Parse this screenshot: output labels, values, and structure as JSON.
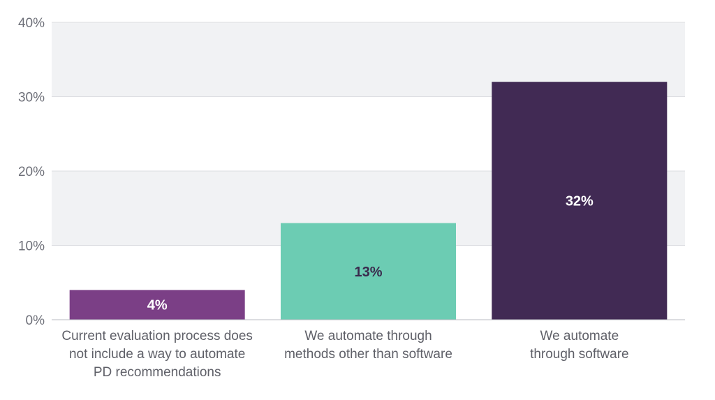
{
  "chart_data": {
    "type": "bar",
    "title": "",
    "xlabel": "",
    "ylabel": "",
    "ylim": [
      0,
      40
    ],
    "yticks": [
      "0%",
      "10%",
      "20%",
      "30%",
      "40%"
    ],
    "ytick_values": [
      0,
      10,
      20,
      30,
      40
    ],
    "grid": "horizontal bands",
    "legend": "none",
    "categories": [
      [
        "Current evaluation process does",
        "not include a way to automate",
        "PD recommendations"
      ],
      [
        "We automate through",
        "methods other than software"
      ],
      [
        "We automate",
        "through software"
      ]
    ],
    "values": [
      4,
      13,
      32
    ],
    "data_labels": [
      "4%",
      "13%",
      "32%"
    ],
    "colors": [
      "#7b3f86",
      "#6cccb3",
      "#412a54"
    ],
    "label_colors": [
      "#ffffff",
      "#3a2a4d",
      "#ffffff"
    ],
    "band_color": "#f1f2f4",
    "gridline_color": "#dcdde1",
    "axis_color": "#b9bbc1"
  }
}
